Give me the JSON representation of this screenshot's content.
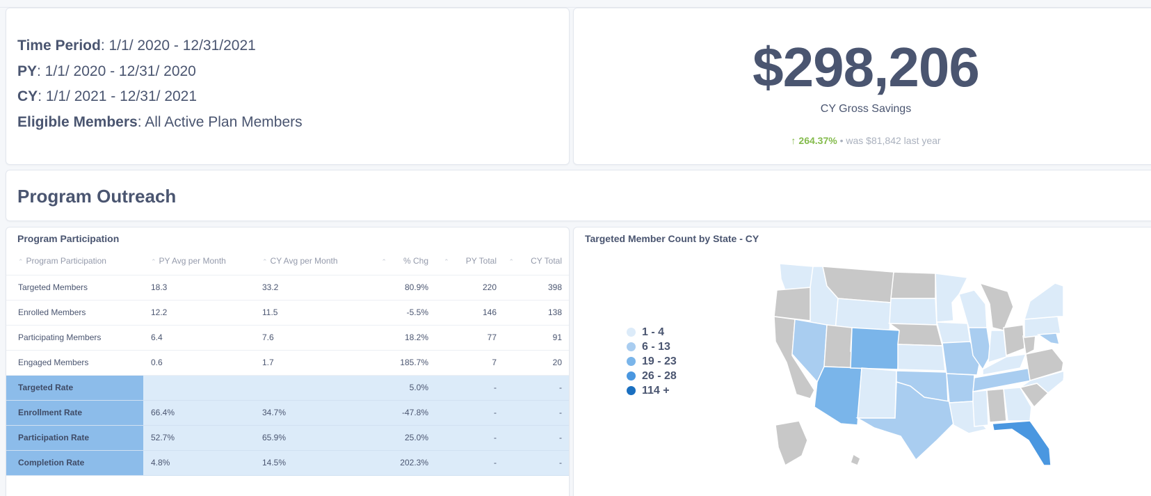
{
  "info": {
    "lines": [
      {
        "label": "Time Period",
        "value": ": 1/1/ 2020 - 12/31/2021"
      },
      {
        "label": "PY",
        "value": ": 1/1/ 2020 - 12/31/ 2020"
      },
      {
        "label": "CY",
        "value": ": 1/1/ 2021 - 12/31/ 2021"
      },
      {
        "label": "Eligible Members",
        "value": ": All Active Plan Members"
      }
    ]
  },
  "savings": {
    "value": "$298,206",
    "label": "CY Gross Savings",
    "trend_pct": "264.37%",
    "trend_text": "• was $81,842  last year",
    "trend_color": "#84bb4c"
  },
  "outreach": {
    "title": "Program Outreach"
  },
  "participation": {
    "title": "Program Participation",
    "columns": [
      "Program Participation",
      "PY Avg per Month",
      "CY Avg per Month",
      "% Chg",
      "PY Total",
      "CY Total"
    ],
    "rows": [
      {
        "name": "Targeted Members",
        "py_avg": "18.3",
        "cy_avg": "33.2",
        "chg": "80.9%",
        "py_total": "220",
        "cy_total": "398",
        "rate": false
      },
      {
        "name": "Enrolled Members",
        "py_avg": "12.2",
        "cy_avg": "11.5",
        "chg": "-5.5%",
        "py_total": "146",
        "cy_total": "138",
        "rate": false
      },
      {
        "name": "Participating Members",
        "py_avg": "6.4",
        "cy_avg": "7.6",
        "chg": "18.2%",
        "py_total": "77",
        "cy_total": "91",
        "rate": false
      },
      {
        "name": "Engaged Members",
        "py_avg": "0.6",
        "cy_avg": "1.7",
        "chg": "185.7%",
        "py_total": "7",
        "cy_total": "20",
        "rate": false
      },
      {
        "name": "Targeted Rate",
        "py_avg": "",
        "cy_avg": "",
        "chg": "5.0%",
        "py_total": "-",
        "cy_total": "-",
        "rate": true
      },
      {
        "name": "Enrollment Rate",
        "py_avg": "66.4%",
        "cy_avg": "34.7%",
        "chg": "-47.8%",
        "py_total": "-",
        "cy_total": "-",
        "rate": true
      },
      {
        "name": "Participation Rate",
        "py_avg": "52.7%",
        "cy_avg": "65.9%",
        "chg": "25.0%",
        "py_total": "-",
        "cy_total": "-",
        "rate": true
      },
      {
        "name": "Completion Rate",
        "py_avg": "4.8%",
        "cy_avg": "14.5%",
        "chg": "202.3%",
        "py_total": "-",
        "cy_total": "-",
        "rate": true
      }
    ]
  },
  "map": {
    "title": "Targeted Member Count by State - CY",
    "legend": [
      {
        "label": "1 - 4",
        "color": "#dcebf9"
      },
      {
        "label": "6 - 13",
        "color": "#a9cdf0"
      },
      {
        "label": "19 - 23",
        "color": "#7ab5ea"
      },
      {
        "label": "26 - 28",
        "color": "#4a97e0"
      },
      {
        "label": "114 +",
        "color": "#1a6fc0"
      }
    ],
    "no_data_color": "#c8c8c8"
  }
}
